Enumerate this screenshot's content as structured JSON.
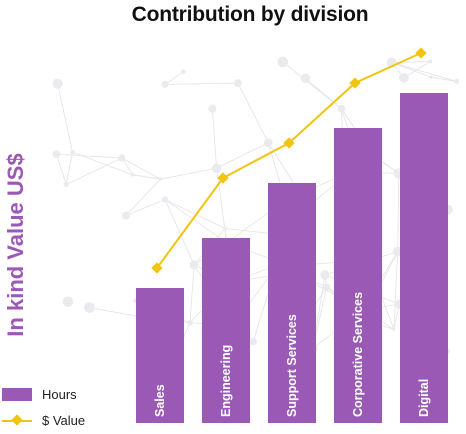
{
  "chart_data": {
    "type": "bar",
    "title": "Contribution by division",
    "ylabel": "In kind Value US$",
    "categories": [
      "Sales",
      "Engineering",
      "Support Services",
      "Corporative Services",
      "Digital"
    ],
    "series": [
      {
        "name": "Hours",
        "kind": "bar",
        "values": [
          135,
          185,
          240,
          295,
          330
        ]
      },
      {
        "name": "$ Value",
        "kind": "line",
        "values": [
          155,
          245,
          280,
          340,
          370
        ]
      }
    ],
    "ylim": [
      0,
      400
    ],
    "legend": "bottom-left",
    "grid": false,
    "colors": {
      "bar": "#9b59b6",
      "line": "#f1c40f"
    }
  }
}
